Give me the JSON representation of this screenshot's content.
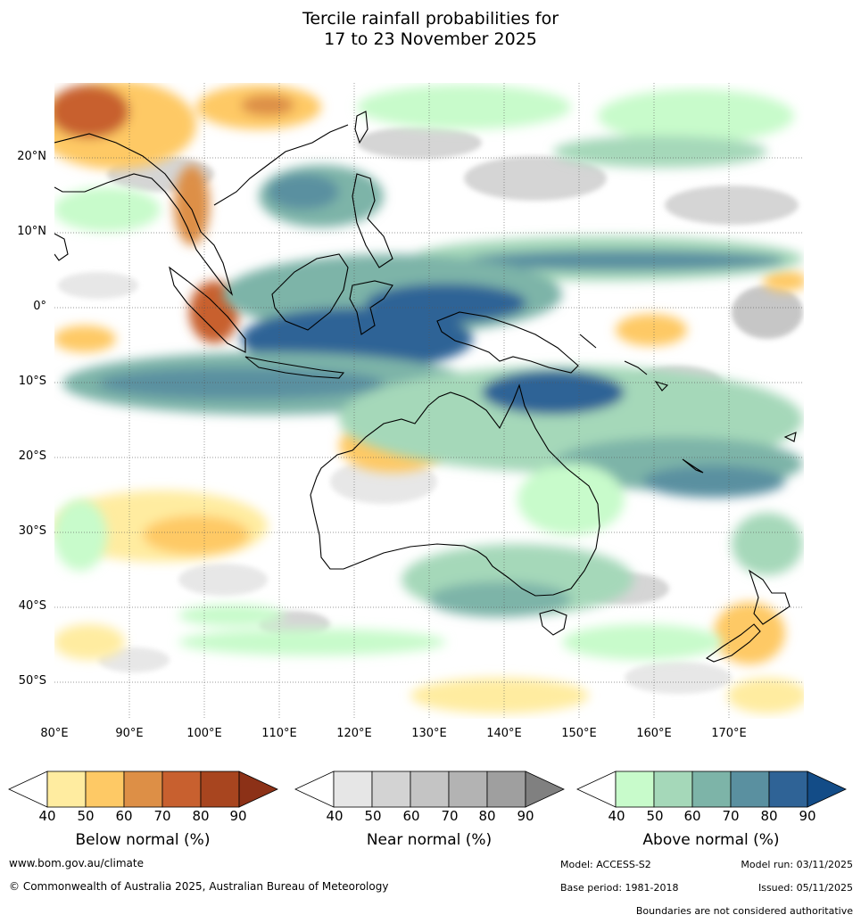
{
  "title": {
    "line1": "Tercile rainfall probabilities for",
    "line2": "17 to 23 November 2025"
  },
  "map": {
    "lat_labels": [
      "20°N",
      "10°N",
      "0°",
      "10°S",
      "20°S",
      "30°S",
      "40°S",
      "50°S"
    ],
    "lon_labels": [
      "80°E",
      "90°E",
      "100°E",
      "110°E",
      "120°E",
      "130°E",
      "140°E",
      "150°E",
      "160°E",
      "170°E"
    ]
  },
  "colorbars": {
    "ticks": [
      "40",
      "50",
      "60",
      "70",
      "80",
      "90"
    ],
    "below": {
      "label": "Below normal (%)",
      "colors": [
        "#ffeca0",
        "#fec965",
        "#dd8f46",
        "#c8602f",
        "#a8451f",
        "#8c3117"
      ]
    },
    "near": {
      "label": "Near normal (%)",
      "colors": [
        "#e6e6e6",
        "#d3d3d3",
        "#c4c4c4",
        "#b3b3b3",
        "#9f9f9f",
        "#808080"
      ]
    },
    "above": {
      "label": "Above normal (%)",
      "colors": [
        "#c8fbcb",
        "#a5d8b9",
        "#7db4a8",
        "#5a90a0",
        "#2f6396",
        "#134c87"
      ]
    }
  },
  "footer": {
    "website": "www.bom.gov.au/climate",
    "copyright": "© Commonwealth of Australia 2025, Australian Bureau of Meteorology",
    "model": "Model: ACCESS-S2",
    "model_run": "Model run: 03/11/2025",
    "base_period": "Base period: 1981-2018",
    "issued": "Issued: 05/11/2025",
    "disclaimer": "Boundaries are not considered authoritative"
  }
}
